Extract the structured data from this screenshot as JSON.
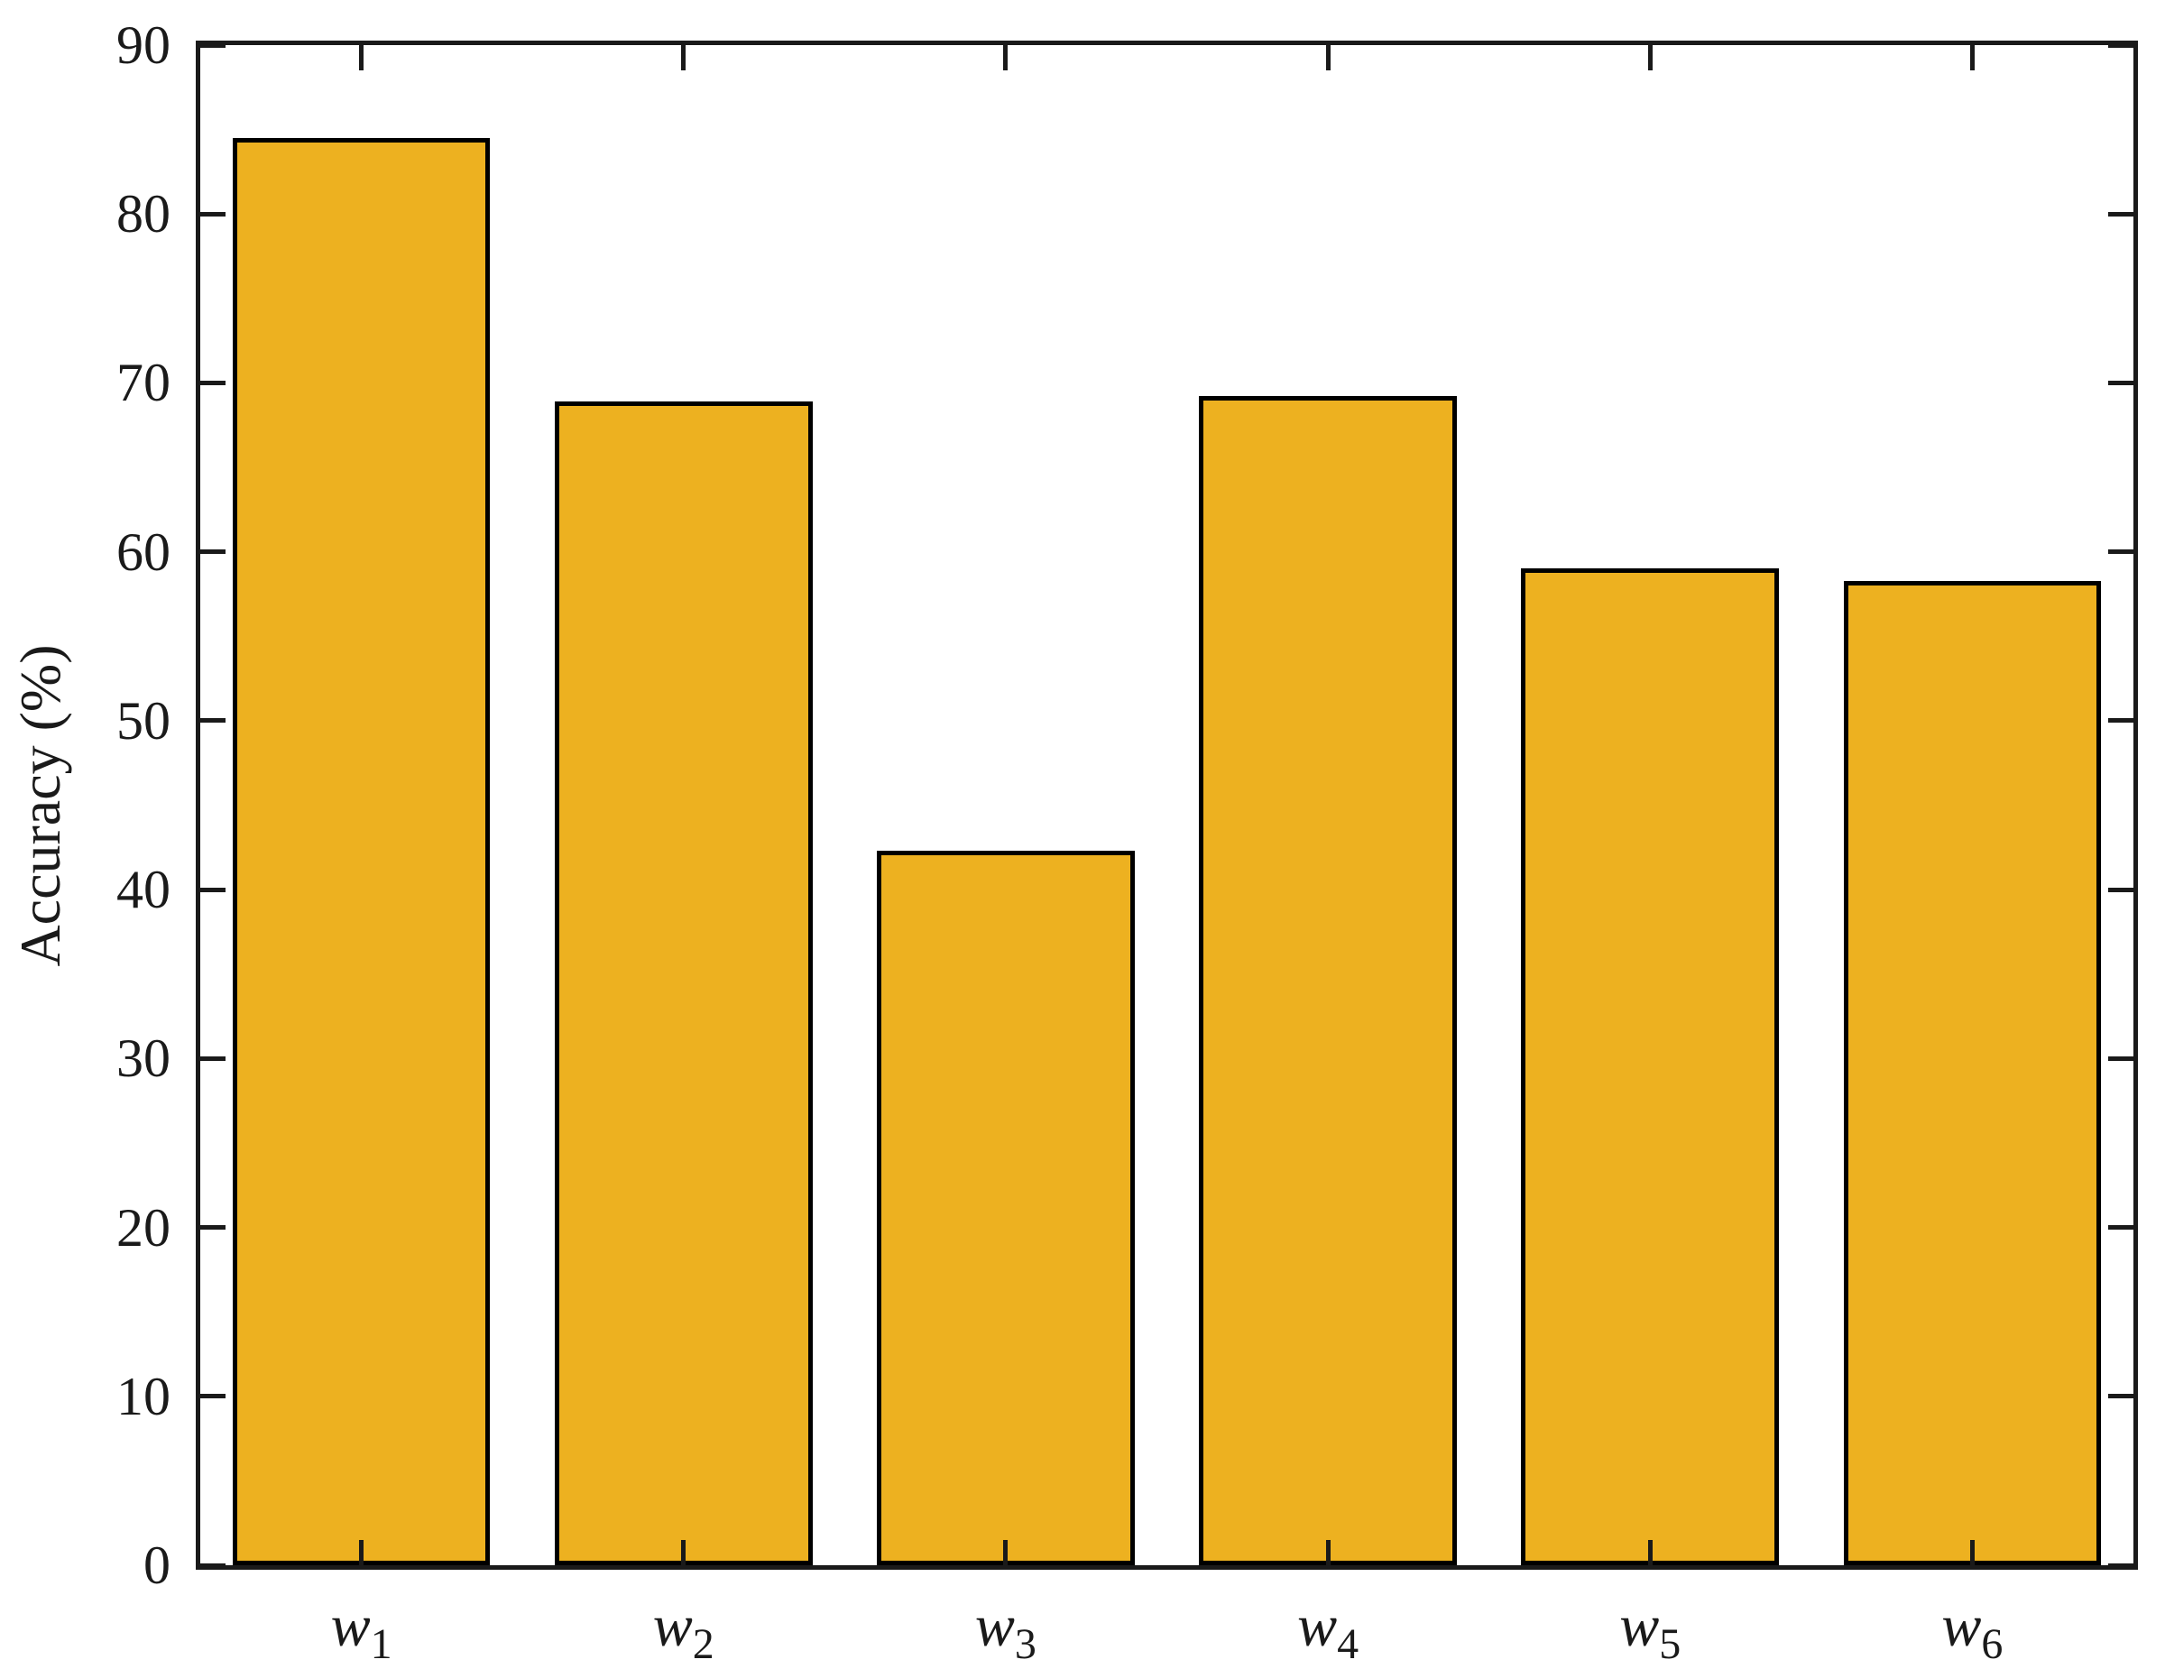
{
  "chart_data": {
    "type": "bar",
    "title": "",
    "xlabel": "",
    "ylabel": "Accuracy (%)",
    "ylim": [
      0,
      90
    ],
    "yticks": [
      0,
      10,
      20,
      30,
      40,
      50,
      60,
      70,
      80,
      90
    ],
    "categories": [
      {
        "base": "w",
        "sub": "1"
      },
      {
        "base": "w",
        "sub": "2"
      },
      {
        "base": "w",
        "sub": "3"
      },
      {
        "base": "w",
        "sub": "4"
      },
      {
        "base": "w",
        "sub": "5"
      },
      {
        "base": "w",
        "sub": "6"
      }
    ],
    "values": [
      84.5,
      68.9,
      42.3,
      69.2,
      59.0,
      58.3
    ],
    "bar_width_fraction": 0.8,
    "grid": "off",
    "legend": "none",
    "box": "on",
    "tick_direction": "in",
    "colors": {
      "bar_fill": "#EDB120",
      "bar_edge": "#000000",
      "axis": "#1a1a1a",
      "background": "#ffffff"
    }
  }
}
